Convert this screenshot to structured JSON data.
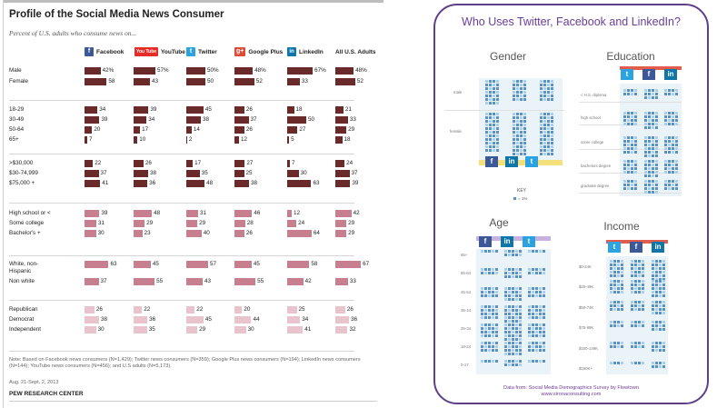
{
  "pew": {
    "title": "Profile of the Social Media News Consumer",
    "subtitle": "Percent of U.S. adults who consume news on...",
    "columns": [
      "Facebook",
      "YouTube",
      "Twitter",
      "Google Plus",
      "LinkedIn",
      "All U.S. Adults"
    ],
    "column_icons": [
      "facebook-icon",
      "youtube-icon",
      "twitter-icon",
      "google-plus-icon",
      "linkedin-icon",
      ""
    ],
    "icon_glyphs": {
      "fb": "f",
      "yt": "You Tube",
      "tw": "t",
      "gp": "g+",
      "li": "in"
    },
    "note": "Note: Based on Facebook news consumers (N=1,429); Twitter news consumers (N=359); Google Plus news consumers (N=194); LinkedIn news consumers (N=144); YouTube news consumers (N=456); and U.S adults (N=5,173).",
    "date": "Aug. 21-Sept. 2, 2013",
    "source": "PEW RESEARCH CENTER",
    "colors": {
      "dark": "#6b2a2a",
      "medium": "#c77f8f",
      "light": "#e9c4cc"
    }
  },
  "chart_data": {
    "type": "bar",
    "title": "Profile of the Social Media News Consumer",
    "subtitle": "Percent of U.S. adults who consume news on...",
    "series": [
      {
        "name": "Facebook"
      },
      {
        "name": "YouTube"
      },
      {
        "name": "Twitter"
      },
      {
        "name": "Google Plus"
      },
      {
        "name": "LinkedIn"
      },
      {
        "name": "All U.S. Adults"
      }
    ],
    "groups": [
      {
        "tone": "dark",
        "rows": [
          {
            "label": "Male",
            "values": [
              "42%",
              "57%",
              "50%",
              "48%",
              "67%",
              "48%"
            ]
          },
          {
            "label": "Female",
            "values": [
              58,
              43,
              50,
              52,
              33,
              52
            ]
          }
        ]
      },
      {
        "tone": "dark",
        "rows": [
          {
            "label": "18-29",
            "values": [
              34,
              39,
              45,
              26,
              18,
              21
            ]
          },
          {
            "label": "30-49",
            "values": [
              39,
              34,
              38,
              37,
              50,
              33
            ]
          },
          {
            "label": "50-64",
            "values": [
              20,
              17,
              14,
              26,
              27,
              29
            ]
          },
          {
            "label": "65+",
            "values": [
              7,
              10,
              2,
              12,
              5,
              18
            ]
          }
        ]
      },
      {
        "tone": "dark",
        "rows": [
          {
            "label": ">$30,000",
            "values": [
              22,
              26,
              17,
              27,
              7,
              24
            ]
          },
          {
            "label": "$30-74,999",
            "values": [
              37,
              38,
              35,
              25,
              30,
              37
            ]
          },
          {
            "label": "$75,000 +",
            "values": [
              41,
              36,
              48,
              38,
              63,
              39
            ]
          }
        ]
      },
      {
        "tone": "medium",
        "rows": [
          {
            "label": "High school or <",
            "values": [
              39,
              48,
              31,
              46,
              12,
              42
            ]
          },
          {
            "label": "Some college",
            "values": [
              31,
              29,
              29,
              28,
              24,
              29
            ]
          },
          {
            "label": "Bachelor's +",
            "values": [
              30,
              23,
              40,
              26,
              64,
              29
            ]
          }
        ]
      },
      {
        "tone": "medium",
        "rows": [
          {
            "label": "White, non-\nHispanic",
            "values": [
              63,
              45,
              57,
              45,
              58,
              67
            ]
          },
          {
            "label": "Non white",
            "values": [
              37,
              55,
              43,
              55,
              42,
              33
            ]
          }
        ]
      },
      {
        "tone": "light",
        "rows": [
          {
            "label": "Republican",
            "values": [
              26,
              22,
              22,
              20,
              25,
              26
            ]
          },
          {
            "label": "Democrat",
            "values": [
              38,
              36,
              45,
              44,
              34,
              36
            ]
          },
          {
            "label": "Independent",
            "values": [
              30,
              35,
              29,
              30,
              41,
              32
            ]
          }
        ]
      }
    ]
  },
  "flowtown": {
    "title": "Who Uses Twitter, Facebook and LinkedIn?",
    "sections": {
      "gender": "Gender",
      "education": "Education",
      "age": "Age",
      "income": "Income"
    },
    "gender_labels": [
      "male",
      "female"
    ],
    "education_labels": [
      "< H.S. diploma",
      "high school",
      "some college",
      "bachelors degree",
      "graduate degree"
    ],
    "age_labels": [
      "65+",
      "55-64",
      "45-54",
      "35-44",
      "25-34",
      "18-24",
      "0-17"
    ],
    "income_labels": [
      "$0-24K",
      "$25-49K",
      "$50-74K",
      "$75-99K",
      "$100-149K",
      "$150K+"
    ],
    "key_title": "KEY",
    "key_text": "= 1%",
    "icon_glyphs": {
      "fb": "f",
      "li": "in",
      "tw": "t"
    },
    "source_line1": "Data from: Social Media Demographics Survey by Flowtown",
    "source_line2": "www.sironaconsulting.com",
    "colors": {
      "accent": "#6a3d9a",
      "dot": "#5a92c8",
      "dot_light": "#a9d0ea",
      "fb": "#3b5998",
      "li": "#0e76a8",
      "tw": "#2aa3e0"
    }
  }
}
